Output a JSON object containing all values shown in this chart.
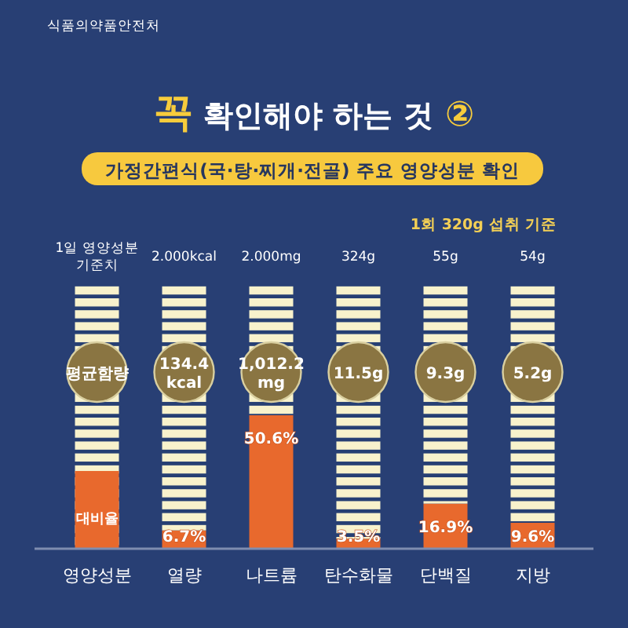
{
  "chart_data": {
    "type": "bar",
    "title": "꼭 확인해야 하는 것 ②",
    "subtitle": "가정간편식(국·탕·찌개·전골) 주요 영양성분 확인",
    "categories": [
      "열량",
      "나트륨",
      "탄수화물",
      "단백질",
      "지방"
    ],
    "stacked": true,
    "ylim": [
      0,
      100
    ],
    "tick_labels": "x",
    "legend": "left",
    "legend_title": "영양성분",
    "series": [
      {
        "name": "대비율",
        "color": "#e8692d",
        "values": [
          6.7,
          50.6,
          3.5,
          16.9,
          9.6
        ],
        "value_labels": [
          "6.7%",
          "50.6%",
          "3.5%",
          "16.9%",
          "9.6%"
        ]
      },
      {
        "color": "#f8f2cc",
        "values": [
          93.3,
          49.4,
          96.5,
          83.1,
          90.4
        ]
      }
    ],
    "annotations": [
      "식품의약품안전처",
      "1회 320g 섭취 기준",
      "1일 영양성분 기준치",
      "2.000kcal",
      "2.000mg",
      "324g",
      "55g",
      "54g",
      "평균함량",
      "134.4 kcal",
      "1,012.2 mg",
      "11.5g",
      "9.3g",
      "5.2g"
    ]
  }
}
